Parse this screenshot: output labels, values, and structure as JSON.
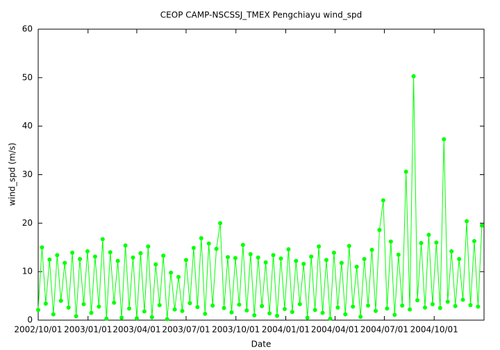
{
  "chart_data": {
    "type": "line",
    "title": "CEOP CAMP-NSCSSJ_TMEX Pengchiayu  wind_spd",
    "x_label": "Date",
    "y_label": "wind_spd (m/s)",
    "x": [
      "2002/10/01",
      "2002/10/08",
      "2002/10/15",
      "2002/10/22",
      "2002/10/29",
      "2002/11/05",
      "2002/11/12",
      "2002/11/19",
      "2002/11/26",
      "2002/12/03",
      "2002/12/10",
      "2002/12/17",
      "2002/12/24",
      "2002/12/31",
      "2003/01/07",
      "2003/01/14",
      "2003/01/21",
      "2003/01/28",
      "2003/02/04",
      "2003/02/11",
      "2003/02/18",
      "2003/02/25",
      "2003/03/04",
      "2003/03/11",
      "2003/03/18",
      "2003/03/25",
      "2003/04/01",
      "2003/04/08",
      "2003/04/15",
      "2003/04/22",
      "2003/04/29",
      "2003/05/06",
      "2003/05/13",
      "2003/05/20",
      "2003/05/27",
      "2003/06/03",
      "2003/06/10",
      "2003/06/17",
      "2003/06/24",
      "2003/07/01",
      "2003/07/08",
      "2003/07/15",
      "2003/07/22",
      "2003/07/29",
      "2003/08/05",
      "2003/08/12",
      "2003/08/19",
      "2003/08/26",
      "2003/09/02",
      "2003/09/09",
      "2003/09/16",
      "2003/09/23",
      "2003/09/30",
      "2003/10/07",
      "2003/10/14",
      "2003/10/21",
      "2003/10/28",
      "2003/11/04",
      "2003/11/11",
      "2003/11/18",
      "2003/11/25",
      "2003/12/02",
      "2003/12/09",
      "2003/12/16",
      "2003/12/23",
      "2003/12/30",
      "2004/01/06",
      "2004/01/13",
      "2004/01/20",
      "2004/01/27",
      "2004/02/03",
      "2004/02/10",
      "2004/02/17",
      "2004/02/24",
      "2004/03/02",
      "2004/03/09",
      "2004/03/16",
      "2004/03/23",
      "2004/03/30",
      "2004/04/06",
      "2004/04/13",
      "2004/04/20",
      "2004/04/27",
      "2004/05/04",
      "2004/05/11",
      "2004/05/18",
      "2004/05/25",
      "2004/06/01",
      "2004/06/08",
      "2004/06/15",
      "2004/06/22",
      "2004/06/29",
      "2004/07/06",
      "2004/07/13",
      "2004/07/20",
      "2004/07/27",
      "2004/08/03",
      "2004/08/10",
      "2004/08/17",
      "2004/08/24",
      "2004/08/31",
      "2004/09/07",
      "2004/09/14",
      "2004/09/21",
      "2004/09/28",
      "2004/10/05",
      "2004/10/12",
      "2004/10/19",
      "2004/10/26",
      "2004/11/02",
      "2004/11/09",
      "2004/11/16",
      "2004/11/23",
      "2004/11/30",
      "2004/12/07",
      "2004/12/14",
      "2004/12/21",
      "2004/12/28"
    ],
    "series": [
      {
        "name": "wind_spd",
        "color": "#00ff00",
        "values": [
          2.1,
          15,
          3.4,
          12.5,
          1.2,
          13.4,
          4.0,
          11.8,
          2.6,
          13.9,
          0.8,
          12.6,
          3.3,
          14.2,
          1.5,
          13.1,
          2.8,
          16.7,
          0.3,
          14.0,
          3.6,
          12.2,
          0.5,
          15.4,
          2.4,
          12.9,
          0.4,
          13.8,
          1.8,
          15.2,
          0.6,
          11.5,
          3.1,
          13.3,
          0.2,
          9.8,
          2.2,
          8.9,
          1.9,
          12.4,
          3.5,
          14.9,
          2.7,
          16.9,
          1.3,
          15.8,
          3.0,
          14.7,
          20.0,
          2.5,
          13.0,
          1.6,
          12.8,
          3.2,
          15.5,
          2.0,
          13.6,
          1.0,
          12.9,
          2.9,
          11.9,
          1.4,
          13.4,
          0.9,
          12.7,
          2.3,
          14.6,
          1.7,
          12.2,
          3.3,
          11.6,
          0.5,
          13.1,
          2.1,
          15.2,
          1.5,
          12.4,
          0.3,
          13.9,
          2.6,
          11.8,
          1.2,
          15.3,
          2.8,
          11.0,
          0.7,
          12.6,
          3.0,
          14.5,
          1.9,
          18.6,
          24.7,
          2.4,
          16.2,
          1.1,
          13.5,
          3.0,
          30.6,
          2.2,
          50.3,
          4.1,
          15.9,
          2.6,
          17.6,
          3.3,
          16.0,
          2.5,
          37.3,
          3.8,
          14.2,
          2.9,
          12.6,
          4.2,
          20.4,
          3.1,
          16.3,
          2.8,
          19.5
        ]
      }
    ],
    "xlim": [
      "2002/10/01",
      "2005/01/01"
    ],
    "xticks": [
      "2002/10/01",
      "2003/01/01",
      "2003/04/01",
      "2003/07/01",
      "2003/10/01",
      "2004/01/01",
      "2004/04/01",
      "2004/07/01",
      "2004/10/01"
    ],
    "ylim": [
      0,
      60
    ],
    "yticks": [
      0,
      10,
      20,
      30,
      40,
      50,
      60
    ]
  }
}
